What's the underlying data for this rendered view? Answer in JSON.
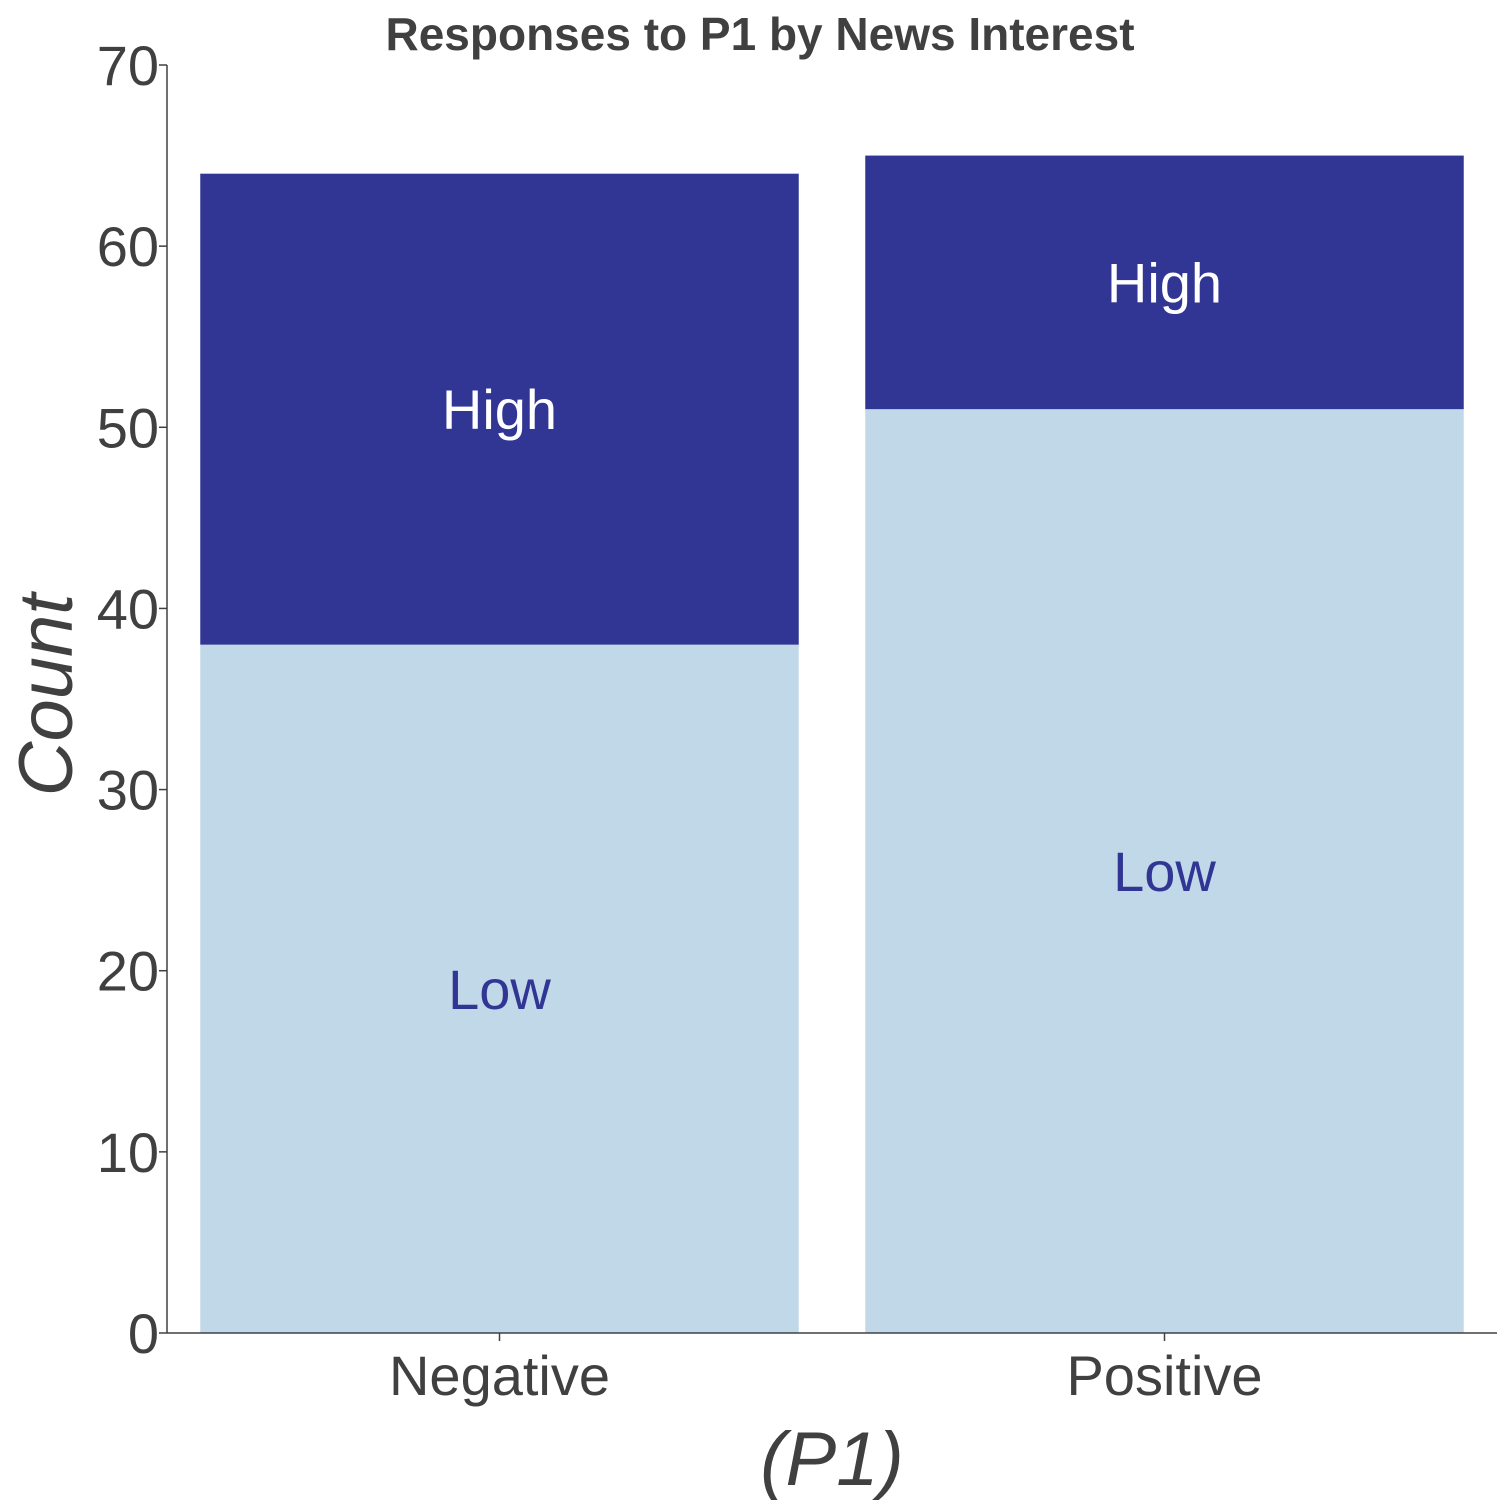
{
  "chart_data": {
    "type": "bar",
    "stacked": true,
    "title": "Responses to P1 by News Interest",
    "xlabel": "(P1)",
    "ylabel": "Count",
    "categories": [
      "Negative",
      "Positive"
    ],
    "series": [
      {
        "name": "Low",
        "values": [
          38,
          51
        ],
        "color": "#c0d8e8",
        "label_color": "#313694"
      },
      {
        "name": "High",
        "values": [
          26,
          14
        ],
        "color": "#313694",
        "label_color": "#ffffff"
      }
    ],
    "ylim": [
      0,
      70
    ],
    "yticks": [
      0,
      10,
      20,
      30,
      40,
      50,
      60,
      70
    ],
    "grid": false,
    "legend": "none",
    "segment_labels": true
  }
}
